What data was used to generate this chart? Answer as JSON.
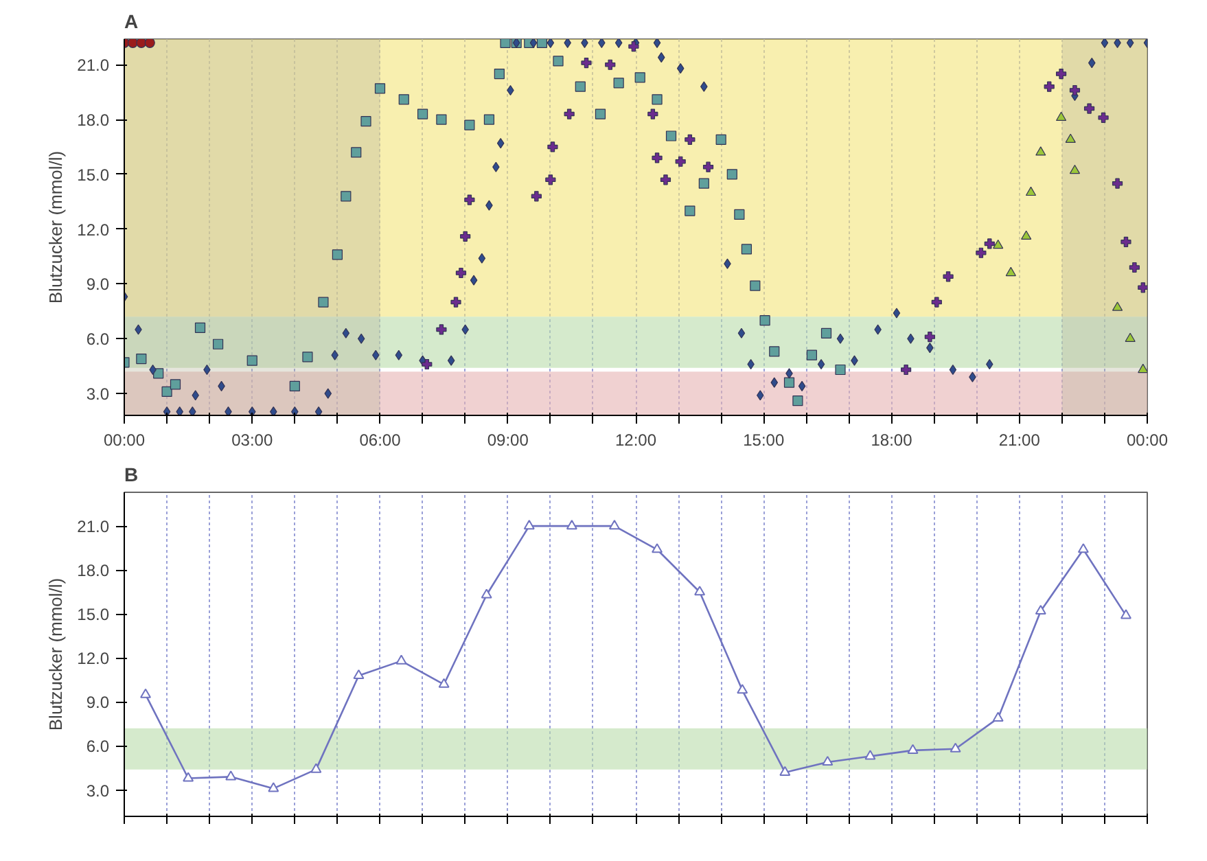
{
  "chart_data": [
    {
      "type": "scatter",
      "title": "A",
      "ylabel": "Blutzucker (mmol/l)",
      "xlim": [
        0,
        24
      ],
      "ylim": [
        1.8,
        22.4
      ],
      "xticks": [
        {
          "value": 0,
          "label": "00:00"
        },
        {
          "value": 1,
          "label": null
        },
        {
          "value": 2,
          "label": null
        },
        {
          "value": 3,
          "label": "03:00"
        },
        {
          "value": 4,
          "label": null
        },
        {
          "value": 5,
          "label": null
        },
        {
          "value": 6,
          "label": "06:00"
        },
        {
          "value": 7,
          "label": null
        },
        {
          "value": 8,
          "label": null
        },
        {
          "value": 9,
          "label": "09:00"
        },
        {
          "value": 10,
          "label": null
        },
        {
          "value": 11,
          "label": null
        },
        {
          "value": 12,
          "label": "12:00"
        },
        {
          "value": 13,
          "label": null
        },
        {
          "value": 14,
          "label": null
        },
        {
          "value": 15,
          "label": "15:00"
        },
        {
          "value": 16,
          "label": null
        },
        {
          "value": 17,
          "label": null
        },
        {
          "value": 18,
          "label": "18:00"
        },
        {
          "value": 19,
          "label": null
        },
        {
          "value": 20,
          "label": null
        },
        {
          "value": 21,
          "label": "21:00"
        },
        {
          "value": 22,
          "label": null
        },
        {
          "value": 23,
          "label": null
        },
        {
          "value": 24,
          "label": "00:00"
        }
      ],
      "yticks": [
        {
          "value": 3,
          "label": "3.0"
        },
        {
          "value": 6,
          "label": "6.0"
        },
        {
          "value": 9,
          "label": "9.0"
        },
        {
          "value": 12,
          "label": "12.0"
        },
        {
          "value": 15,
          "label": "15.0"
        },
        {
          "value": 18,
          "label": "18.0"
        },
        {
          "value": 21,
          "label": "21.0"
        }
      ],
      "grid": "x",
      "bands": [
        {
          "axis": "y",
          "from": 7.2,
          "to": 22.4,
          "color": "#f3e57a"
        },
        {
          "axis": "y",
          "from": 4.4,
          "to": 7.2,
          "color": "#b9dcaa"
        },
        {
          "axis": "y",
          "from": 1.8,
          "to": 4.2,
          "color": "#e6b3b3"
        },
        {
          "axis": "x",
          "from": 0,
          "to": 6,
          "color": "#b8b49a"
        },
        {
          "axis": "x",
          "from": 22,
          "to": 24,
          "color": "#b8b49a"
        }
      ],
      "series": [
        {
          "color": "#5f9f9c",
          "marker": "square",
          "x": [
            0,
            0.4,
            0.8,
            1.0,
            1.2,
            1.78,
            2.2,
            3.0,
            4.0,
            4.3,
            4.67,
            5.0,
            5.2,
            5.44,
            5.67,
            6.0,
            6.56,
            7.0,
            7.44,
            8.1,
            8.56,
            8.8,
            8.94,
            9.2,
            9.5,
            9.8,
            10.18,
            10.7,
            11.17,
            11.6,
            12.1,
            12.5,
            12.83,
            13.27,
            13.6,
            14.0,
            14.26,
            14.43,
            14.6,
            14.8,
            15.03,
            15.25,
            15.6,
            15.8,
            16.13,
            16.47,
            16.8
          ],
          "values": [
            4.7,
            4.9,
            4.1,
            3.1,
            3.5,
            6.6,
            5.7,
            4.8,
            3.4,
            5.0,
            8.0,
            10.6,
            13.8,
            16.2,
            17.9,
            19.7,
            19.1,
            18.3,
            18.0,
            17.7,
            18.0,
            20.5,
            22.2,
            22.2,
            22.2,
            22.2,
            21.2,
            19.8,
            18.3,
            20.0,
            20.3,
            19.1,
            17.1,
            13.0,
            14.5,
            16.9,
            15.0,
            12.8,
            10.9,
            8.9,
            7.0,
            5.3,
            3.6,
            2.6,
            5.1,
            6.3,
            4.3
          ]
        },
        {
          "color": "#2f4c8c",
          "marker": "diamond",
          "x": [
            0,
            0.33,
            0.67,
            1.0,
            1.3,
            1.6,
            1.67,
            1.94,
            2.28,
            2.44,
            3.0,
            3.5,
            4.0,
            4.56,
            4.78,
            4.94,
            5.2,
            5.56,
            5.9,
            6.44,
            7.0,
            7.67,
            8.0,
            8.2,
            8.39,
            8.56,
            8.72,
            8.83,
            9.06,
            9.2,
            9.6,
            10.0,
            10.4,
            10.8,
            11.2,
            11.6,
            12.0,
            12.5,
            12.6,
            13.05,
            13.6,
            14.15,
            14.48,
            14.7,
            14.92,
            15.25,
            15.6,
            15.9,
            16.35,
            16.8,
            17.13,
            17.68,
            18.12,
            18.45,
            18.9,
            19.44,
            19.9,
            20.3,
            22.3,
            22.7,
            23.0,
            23.3,
            23.6,
            24.0
          ],
          "values": [
            8.3,
            6.5,
            4.3,
            2.0,
            2.0,
            2.0,
            2.9,
            4.3,
            3.4,
            2.0,
            2.0,
            2.0,
            2.0,
            2.0,
            3.0,
            5.1,
            6.3,
            6.0,
            5.1,
            5.1,
            4.8,
            4.8,
            6.5,
            9.2,
            10.4,
            13.3,
            15.4,
            16.7,
            19.6,
            22.2,
            22.2,
            22.2,
            22.2,
            22.2,
            22.2,
            22.2,
            22.2,
            22.2,
            21.4,
            20.8,
            19.8,
            10.1,
            6.3,
            4.6,
            2.9,
            3.6,
            4.1,
            3.4,
            4.6,
            6.0,
            4.8,
            6.5,
            7.4,
            6.0,
            5.5,
            4.3,
            3.9,
            4.6,
            19.3,
            21.1,
            22.2,
            22.2,
            22.2,
            22.2
          ]
        },
        {
          "color": "#6b2c8e",
          "marker": "cross",
          "x": [
            7.1,
            7.44,
            7.78,
            7.9,
            8.0,
            8.1,
            9.67,
            10.0,
            10.05,
            10.44,
            10.84,
            11.4,
            11.95,
            12.4,
            12.5,
            12.7,
            13.05,
            13.27,
            13.7,
            18.34,
            18.9,
            19.06,
            19.33,
            20.1,
            20.3,
            21.7,
            21.98,
            22.3,
            22.64,
            22.97,
            23.3,
            23.5,
            23.7,
            23.9
          ],
          "values": [
            4.6,
            6.5,
            8.0,
            9.6,
            11.6,
            13.6,
            13.8,
            14.7,
            16.5,
            18.3,
            21.1,
            21.0,
            22.0,
            18.3,
            15.9,
            14.7,
            15.7,
            16.9,
            15.4,
            4.3,
            6.1,
            8.0,
            9.4,
            10.7,
            11.2,
            19.8,
            20.5,
            19.6,
            18.6,
            18.1,
            14.5,
            11.3,
            9.9,
            8.8
          ]
        },
        {
          "color": "#9bc63a",
          "marker": "triangle",
          "x": [
            20.5,
            20.8,
            21.16,
            21.27,
            21.5,
            21.98,
            22.2,
            22.3,
            23.3,
            23.6,
            23.9
          ],
          "values": [
            11.1,
            9.6,
            11.6,
            14.0,
            16.2,
            18.1,
            16.9,
            15.2,
            7.7,
            6.0,
            4.3
          ]
        },
        {
          "color": "#9a1c1c",
          "marker": "circle",
          "x": [
            0,
            0.2,
            0.4,
            0.6
          ],
          "values": [
            22.2,
            22.2,
            22.2,
            22.2
          ]
        }
      ]
    },
    {
      "type": "line",
      "title": "B",
      "ylabel": "Blutzucker (mmol/l)",
      "marker": "triangle",
      "tick_labels": "y",
      "grid": "x",
      "xlim": [
        0,
        24
      ],
      "ylim": [
        1.2,
        23.3
      ],
      "xticks": [
        0,
        1,
        2,
        3,
        4,
        5,
        6,
        7,
        8,
        9,
        10,
        11,
        12,
        13,
        14,
        15,
        16,
        17,
        18,
        19,
        20,
        21,
        22,
        23,
        24
      ],
      "yticks": [
        {
          "value": 3,
          "label": "3.0"
        },
        {
          "value": 6,
          "label": "6.0"
        },
        {
          "value": 9,
          "label": "9.0"
        },
        {
          "value": 12,
          "label": "12.0"
        },
        {
          "value": 15,
          "label": "15.0"
        },
        {
          "value": 18,
          "label": "18.0"
        },
        {
          "value": 21,
          "label": "21.0"
        }
      ],
      "bands": [
        {
          "axis": "y",
          "from": 4.4,
          "to": 7.2,
          "color": "#b9dcaa"
        }
      ],
      "x": [
        0.5,
        1.5,
        2.5,
        3.5,
        4.5,
        5.5,
        6.5,
        7.5,
        8.5,
        9.5,
        10.5,
        11.5,
        12.5,
        13.5,
        14.5,
        15.5,
        16.5,
        17.5,
        18.5,
        19.5,
        20.5,
        21.5,
        22.5,
        23.5
      ],
      "series": [
        {
          "color": "#6f73c0",
          "values": [
            9.5,
            3.8,
            3.9,
            3.1,
            4.4,
            10.8,
            11.8,
            10.2,
            16.3,
            21.0,
            21.0,
            21.0,
            19.4,
            16.5,
            9.8,
            4.2,
            4.9,
            5.3,
            5.7,
            5.8,
            7.9,
            15.2,
            19.4,
            14.9
          ]
        }
      ]
    }
  ]
}
